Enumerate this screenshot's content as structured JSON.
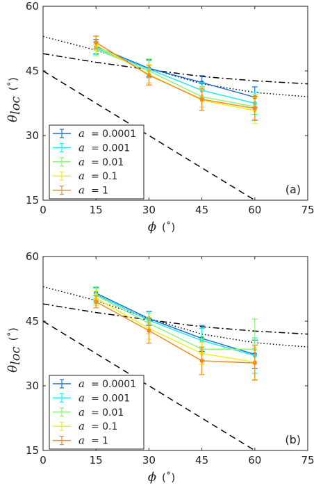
{
  "colors": {
    "a_0.0001": "#1f6fd0",
    "a_0.001": "#22e8f0",
    "a_0.01": "#8ff07a",
    "a_0.1": "#f2f01c",
    "a_1": "#f28a1c",
    "reference": "#000000"
  },
  "chart_data": [
    {
      "type": "line",
      "panel_label": "(a)",
      "xlabel": "ϕ",
      "xunit": "(˚)",
      "ylabel_main": "θ",
      "ylabel_sub": "loc",
      "yunit": "(˚)",
      "xlim": [
        0,
        75
      ],
      "ylim": [
        15,
        60
      ],
      "xticks": [
        "0",
        "15",
        "30",
        "45",
        "60",
        "75"
      ],
      "yticks": [
        "15",
        "30",
        "45",
        "60"
      ],
      "legend_location": "bottom-left",
      "x": [
        15,
        30,
        45,
        60
      ],
      "series": [
        {
          "name": "a = 0.0001",
          "legend_symbol": "a",
          "legend_value": "= 0.0001",
          "color_key": "a_0.0001",
          "values": [
            50.7,
            45.6,
            42.3,
            38.9
          ],
          "errors": [
            1.6,
            2.0,
            1.6,
            2.4
          ]
        },
        {
          "name": "a = 0.001",
          "legend_symbol": "a",
          "legend_value": "= 0.001",
          "color_key": "a_0.001",
          "values": [
            50.3,
            45.4,
            40.5,
            37.5
          ],
          "errors": [
            1.5,
            2.0,
            1.8,
            2.6
          ]
        },
        {
          "name": "a = 0.01",
          "legend_symbol": "a",
          "legend_value": "= 0.01",
          "color_key": "a_0.01",
          "values": [
            50.0,
            45.0,
            39.0,
            36.7
          ],
          "errors": [
            1.5,
            2.8,
            2.4,
            2.9
          ]
        },
        {
          "name": "a = 0.1",
          "legend_symbol": "a",
          "legend_value": "= 0.1",
          "color_key": "a_0.1",
          "values": [
            51.0,
            44.2,
            38.2,
            35.8
          ],
          "errors": [
            2.0,
            2.4,
            2.4,
            3.0
          ]
        },
        {
          "name": "a = 1",
          "legend_symbol": "a",
          "legend_value": "= 1",
          "color_key": "a_1",
          "values": [
            51.6,
            44.0,
            38.4,
            36.3
          ],
          "errors": [
            1.5,
            2.3,
            2.6,
            2.8
          ]
        }
      ],
      "reference_lines": [
        {
          "style": "dashed",
          "x": [
            0,
            60
          ],
          "y": [
            45,
            15
          ]
        },
        {
          "style": "dashdot",
          "x": [
            0,
            15,
            30,
            45,
            60,
            75
          ],
          "y": [
            49.0,
            47.0,
            45.3,
            43.7,
            42.7,
            42.0
          ]
        },
        {
          "style": "dotted",
          "x": [
            0,
            15,
            30,
            45,
            60,
            75
          ],
          "y": [
            53.0,
            49.8,
            45.6,
            42.0,
            40.0,
            39.0
          ]
        }
      ]
    },
    {
      "type": "line",
      "panel_label": "(b)",
      "xlabel": "ϕ",
      "xunit": "(˚)",
      "ylabel_main": "θ",
      "ylabel_sub": "loc",
      "yunit": "(˚)",
      "xlim": [
        0,
        75
      ],
      "ylim": [
        15,
        60
      ],
      "xticks": [
        "0",
        "15",
        "30",
        "45",
        "60",
        "75"
      ],
      "yticks": [
        "15",
        "30",
        "45",
        "60"
      ],
      "legend_location": "bottom-left",
      "x": [
        15,
        30,
        45,
        60
      ],
      "series": [
        {
          "name": "a = 0.0001",
          "legend_symbol": "a",
          "legend_value": "= 0.0001",
          "color_key": "a_0.0001",
          "values": [
            51.5,
            45.6,
            41.0,
            37.3
          ],
          "errors": [
            1.4,
            1.6,
            3.0,
            3.3
          ]
        },
        {
          "name": "a = 0.001",
          "legend_symbol": "a",
          "legend_value": "= 0.001",
          "color_key": "a_0.001",
          "values": [
            51.2,
            45.2,
            40.5,
            37.0
          ],
          "errors": [
            1.5,
            2.1,
            2.8,
            4.1
          ]
        },
        {
          "name": "a = 0.01",
          "legend_symbol": "a",
          "legend_value": "= 0.01",
          "color_key": "a_0.01",
          "values": [
            51.0,
            44.5,
            38.5,
            38.5
          ],
          "errors": [
            2.0,
            2.4,
            2.5,
            7.0
          ]
        },
        {
          "name": "a = 0.1",
          "legend_symbol": "a",
          "legend_value": "= 0.1",
          "color_key": "a_0.1",
          "values": [
            50.3,
            43.3,
            37.5,
            35.5
          ],
          "errors": [
            1.7,
            2.5,
            2.5,
            4.1
          ]
        },
        {
          "name": "a = 1",
          "legend_symbol": "a",
          "legend_value": "= 1",
          "color_key": "a_1",
          "values": [
            49.5,
            42.8,
            35.8,
            35.3
          ],
          "errors": [
            1.4,
            2.9,
            3.2,
            4.0
          ]
        }
      ],
      "reference_lines": [
        {
          "style": "dashed",
          "x": [
            0,
            60
          ],
          "y": [
            45,
            15
          ]
        },
        {
          "style": "dashdot",
          "x": [
            0,
            15,
            30,
            45,
            60,
            75
          ],
          "y": [
            49.0,
            47.0,
            45.3,
            43.7,
            42.7,
            42.0
          ]
        },
        {
          "style": "dotted",
          "x": [
            0,
            15,
            30,
            45,
            60,
            75
          ],
          "y": [
            53.0,
            49.8,
            45.6,
            42.0,
            40.0,
            39.0
          ]
        }
      ]
    }
  ]
}
